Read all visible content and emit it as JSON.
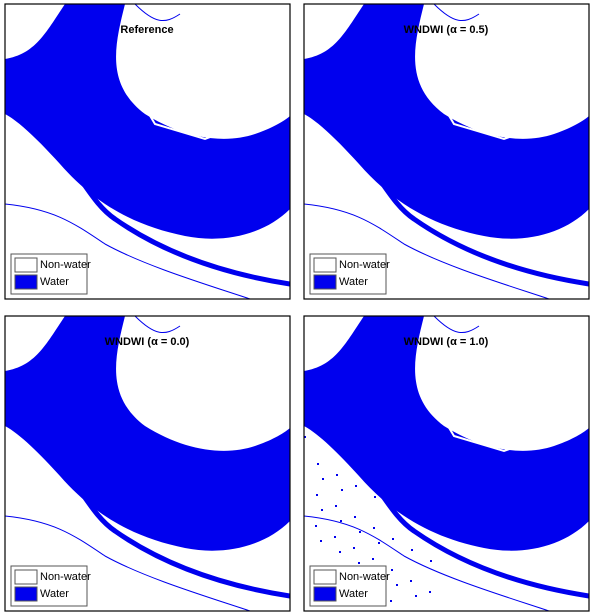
{
  "panels": [
    {
      "title": "Reference",
      "legend": [
        "Non-water",
        "Water"
      ]
    },
    {
      "title": "WNDWI (α = 0.5)",
      "legend": [
        "Non-water",
        "Water"
      ]
    },
    {
      "title": "WNDWI (α = 0.0)",
      "legend": [
        "Non-water",
        "Water"
      ]
    },
    {
      "title": "WNDWI (α = 1.0)",
      "legend": [
        "Non-water",
        "Water"
      ]
    }
  ]
}
